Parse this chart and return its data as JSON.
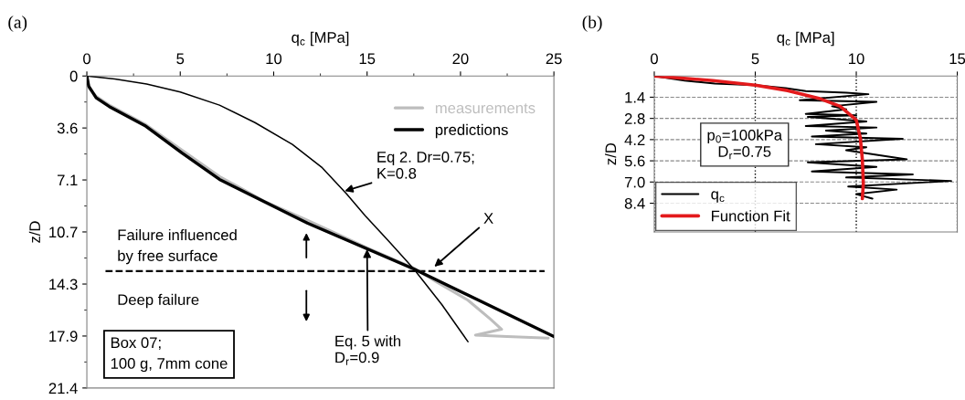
{
  "chart_data": [
    {
      "type": "line",
      "xlabel": "q$_{c}$ [MPa]",
      "ylabel": "z/D",
      "xlim": [
        0,
        25
      ],
      "xticks": [
        0,
        5,
        10,
        15,
        20,
        25
      ],
      "ylim": [
        21.43,
        0
      ],
      "yticks": [
        0,
        {
          "value": 3.57,
          "label": "3.6"
        },
        {
          "value": 7.14,
          "label": "7.1"
        },
        {
          "value": 10.71,
          "label": "10.7"
        },
        {
          "value": 14.29,
          "label": "14.3"
        },
        {
          "value": 17.86,
          "label": "17.9"
        },
        {
          "value": 21.43,
          "label": "21.4"
        }
      ],
      "grid": false,
      "legend": "top right",
      "series": [
        {
          "name": "measurements",
          "color": "#bdbdbd",
          "x": [
            0,
            0.1,
            0.5,
            1.2,
            3.1,
            5.1,
            7.1,
            9.5,
            11.8,
            15,
            17.5,
            18.8,
            20.4,
            21.6,
            22.2,
            20.8,
            22.5,
            24.7
          ],
          "values": [
            0,
            0.8,
            1.4,
            2.0,
            3.3,
            5.1,
            6.9,
            8.6,
            9.9,
            11.8,
            13.2,
            14.2,
            15.4,
            16.7,
            17.4,
            17.8,
            17.9,
            18.0
          ]
        },
        {
          "name": "predictions",
          "color": "#000000",
          "x": [
            0,
            0.1,
            0.5,
            1.2,
            3.1,
            5.1,
            7.1,
            11.8,
            17.5,
            25
          ],
          "values": [
            0,
            0.7,
            1.5,
            2.1,
            3.4,
            5.3,
            7.1,
            10.1,
            13.25,
            17.9
          ]
        },
        {
          "color": "#000000",
          "x": [
            0,
            1.5,
            3.2,
            5,
            7.1,
            9,
            11,
            12.6,
            13.9,
            14.9,
            16.2,
            17.5,
            19,
            20.4
          ],
          "values": [
            0,
            0.2,
            0.55,
            1.1,
            2.0,
            3.2,
            4.7,
            6.3,
            8.1,
            9.6,
            11.4,
            13.25,
            15.7,
            18.25
          ]
        }
      ],
      "ref_lines": [
        {
          "axis": "y",
          "value": 13.4,
          "line_style": "dashed",
          "color": "#000000"
        }
      ],
      "annotations": [
        "(a)",
        {
          "text": "Eq 2. Dr=0.75;\nK=0.8",
          "x": 13.8,
          "y": 7.9
        },
        {
          "text": "X",
          "x": 18.6,
          "y": 13.1
        },
        {
          "text": "Eq. 5 with\nD$_{r}$=0.9",
          "x": 15.0,
          "y": 11.9
        },
        "Failure influenced\nby free surface",
        "Deep failure",
        "Box 07;\n100 g, 7mm cone"
      ]
    },
    {
      "type": "line",
      "xlabel": "q$_{c}$ [MPa]",
      "ylabel": "z/D",
      "xlim": [
        0,
        15
      ],
      "xticks": [
        0,
        5,
        10,
        15
      ],
      "ylim": [
        10.3,
        0
      ],
      "yticks": [
        1.4,
        2.8,
        4.2,
        5.6,
        {
          "value": 7,
          "label": "7.0"
        },
        8.4
      ],
      "grid": true,
      "legend": "bottom left",
      "series": [
        {
          "name": "q$_{c}$",
          "color": "#000000",
          "x": [
            0,
            1.5,
            3,
            5,
            6.5,
            7.5,
            9.5,
            10.6,
            7.2,
            11,
            8.8,
            9.5,
            7.5,
            10,
            7.6,
            10.5,
            7.5,
            11,
            8.5,
            10.5,
            7.8,
            12.3,
            8,
            10.5,
            9.5,
            12.5,
            7.6,
            11,
            7.8,
            12.8,
            9.5,
            14.7,
            9.6,
            12,
            10,
            10.8
          ],
          "values": [
            0,
            0.3,
            0.5,
            0.6,
            0.8,
            1.0,
            1.1,
            1.2,
            1.6,
            1.7,
            2.0,
            2.2,
            2.5,
            2.6,
            2.7,
            3.0,
            3.3,
            3.4,
            3.6,
            3.8,
            4.0,
            4.15,
            4.5,
            4.7,
            4.9,
            5.5,
            5.7,
            6.0,
            6.3,
            6.5,
            6.7,
            6.93,
            7.3,
            7.5,
            7.8,
            8.1
          ]
        },
        {
          "name": "Function Fit",
          "color": "#e31a1c",
          "x": [
            0,
            2.9,
            5.0,
            6.6,
            8.2,
            9.2,
            10.0,
            10.2,
            10.3,
            10.35,
            10.3
          ],
          "values": [
            0,
            0.3,
            0.6,
            0.96,
            1.5,
            2.0,
            2.9,
            4.1,
            5.5,
            7.1,
            8.1
          ]
        }
      ],
      "annotations": [
        "(b)",
        "p$_{0}$=100kPa\nD$_{r}$=0.75"
      ]
    }
  ]
}
